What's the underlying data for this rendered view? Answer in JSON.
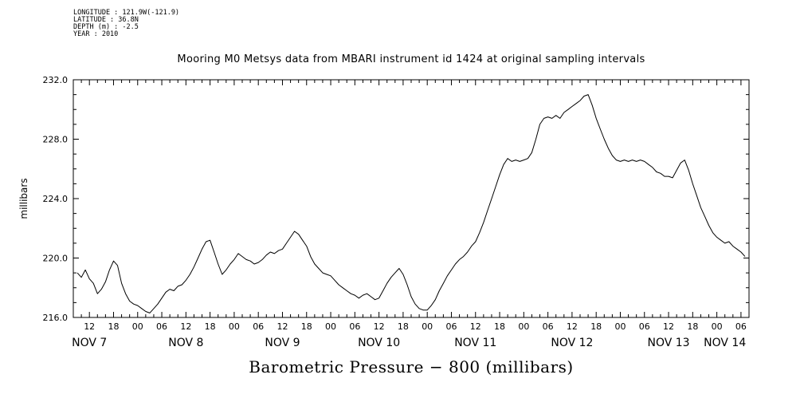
{
  "meta": {
    "longitude": "LONGITUDE : 121.9W(-121.9)",
    "latitude": "LATITUDE : 36.8N",
    "depth": "DEPTH (m) : -2.5",
    "year": "YEAR : 2010"
  },
  "title": "Mooring M0 Metsys data from MBARI instrument id 1424 at original sampling intervals",
  "chart_data": {
    "type": "line",
    "title": "Mooring M0 Metsys data from MBARI instrument id 1424 at original sampling intervals",
    "xlabel": "Barometric Pressure − 800 (millibars)",
    "ylabel": "millibars",
    "ylim": [
      216.0,
      232.0
    ],
    "y_major_ticks": [
      216.0,
      220.0,
      224.0,
      228.0,
      232.0
    ],
    "y_tick_labels": [
      "216.0",
      "220.0",
      "224.0",
      "228.0",
      "232.0"
    ],
    "y_minor_step": 1,
    "x_domain_hours": [
      8,
      176
    ],
    "x_reference": "hours since NOV 7 2010 00:00",
    "x_major_step_hours": 6,
    "x_minor_step_hours": 2,
    "hour_tick_hours": [
      12,
      18,
      24,
      30,
      36,
      42,
      48,
      54,
      60,
      66,
      72,
      78,
      84,
      90,
      96,
      102,
      108,
      114,
      120,
      126,
      132,
      138,
      144,
      150,
      156,
      162,
      168,
      174
    ],
    "hour_tick_labels": [
      "12",
      "18",
      "00",
      "06",
      "12",
      "18",
      "00",
      "06",
      "12",
      "18",
      "00",
      "06",
      "12",
      "18",
      "00",
      "06",
      "12",
      "18",
      "00",
      "06",
      "12",
      "18",
      "00",
      "06",
      "12",
      "18",
      "00",
      "06"
    ],
    "day_labels": [
      {
        "hour": 12,
        "label": "NOV 7"
      },
      {
        "hour": 36,
        "label": "NOV 8"
      },
      {
        "hour": 60,
        "label": "NOV 9"
      },
      {
        "hour": 84,
        "label": "NOV 10"
      },
      {
        "hour": 108,
        "label": "NOV 11"
      },
      {
        "hour": 132,
        "label": "NOV 12"
      },
      {
        "hour": 156,
        "label": "NOV 13"
      },
      {
        "hour": 170,
        "label": "NOV 14"
      }
    ],
    "line_color": "#000000",
    "background": "#ffffff",
    "legend": "none",
    "grid": "off",
    "series": [
      {
        "name": "Barometric Pressure − 800",
        "units": "millibars",
        "x_start_hour": 9,
        "x_step_hours": 1,
        "values": [
          219.0,
          218.7,
          219.2,
          218.6,
          218.3,
          217.6,
          217.9,
          218.4,
          219.2,
          219.8,
          219.5,
          218.3,
          217.6,
          217.1,
          216.9,
          216.8,
          216.6,
          216.4,
          216.3,
          216.6,
          216.9,
          217.3,
          217.7,
          217.9,
          217.8,
          218.1,
          218.2,
          218.5,
          218.9,
          219.4,
          220.0,
          220.6,
          221.1,
          221.2,
          220.4,
          219.6,
          218.9,
          219.2,
          219.6,
          219.9,
          220.3,
          220.1,
          219.9,
          219.8,
          219.6,
          219.7,
          219.9,
          220.2,
          220.4,
          220.3,
          220.5,
          220.6,
          221.0,
          221.4,
          221.8,
          221.6,
          221.2,
          220.8,
          220.1,
          219.6,
          219.3,
          219.0,
          218.9,
          218.8,
          218.5,
          218.2,
          218.0,
          217.8,
          217.6,
          217.5,
          217.3,
          217.5,
          217.6,
          217.4,
          217.2,
          217.3,
          217.8,
          218.3,
          218.7,
          219.0,
          219.3,
          218.9,
          218.2,
          217.4,
          216.9,
          216.6,
          216.5,
          216.5,
          216.8,
          217.2,
          217.8,
          218.3,
          218.8,
          219.2,
          219.6,
          219.9,
          220.1,
          220.4,
          220.8,
          221.1,
          221.7,
          222.4,
          223.2,
          224.0,
          224.8,
          225.6,
          226.3,
          226.7,
          226.5,
          226.6,
          226.5,
          226.6,
          226.7,
          227.1,
          228.0,
          229.0,
          229.4,
          229.5,
          229.4,
          229.6,
          229.4,
          229.8,
          230.0,
          230.2,
          230.4,
          230.6,
          230.9,
          231.0,
          230.3,
          229.4,
          228.7,
          228.0,
          227.4,
          226.9,
          226.6,
          226.5,
          226.6,
          226.5,
          226.6,
          226.5,
          226.6,
          226.5,
          226.3,
          226.1,
          225.8,
          225.7,
          225.5,
          225.5,
          225.4,
          225.9,
          226.4,
          226.6,
          225.9,
          225.0,
          224.2,
          223.4,
          222.8,
          222.2,
          221.7,
          221.4,
          221.2,
          221.0,
          221.1,
          220.8,
          220.6,
          220.4,
          220.1
        ]
      }
    ]
  }
}
